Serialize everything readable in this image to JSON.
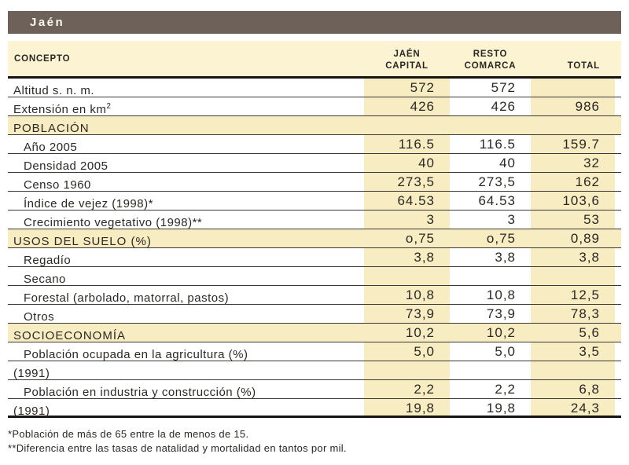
{
  "title": "Jaén",
  "table": {
    "columns": {
      "concept": "CONCEPTO",
      "capital_line1": "JAÉN",
      "capital_line2": "CAPITAL",
      "resto_line1": "RESTO",
      "resto_line2": "COMARCA",
      "total": "TOTAL"
    },
    "rows": [
      {
        "label": "Altitud s. n. m.",
        "capital": "572",
        "resto": "572",
        "total": ""
      },
      {
        "label": "Extensión en km",
        "sup": "2",
        "capital": "426",
        "resto": "426",
        "total": "986"
      },
      {
        "label": "POBLACIÓN",
        "section": true,
        "capital": "",
        "resto": "",
        "total": ""
      },
      {
        "label": "Año 2005",
        "indent": true,
        "capital": "116.5",
        "resto": "116.5",
        "total": "159.7"
      },
      {
        "label": "Densidad 2005",
        "indent": true,
        "capital": "40",
        "resto": "40",
        "total": "32"
      },
      {
        "label": "Censo 1960",
        "indent": true,
        "capital": "273,5",
        "resto": "273,5",
        "total": "162"
      },
      {
        "label": "Índice de vejez (1998)*",
        "indent": true,
        "capital": "64.53",
        "resto": "64.53",
        "total": "103,6"
      },
      {
        "label": "Crecimiento vegetativo (1998)**",
        "indent": true,
        "capital": "3",
        "resto": "3",
        "total": "53"
      },
      {
        "label": "USOS DEL SUELO (%)",
        "section": true,
        "capital": "o,75",
        "resto": "o,75",
        "total": "0,89"
      },
      {
        "label": "Regadío",
        "indent": true,
        "capital": "3,8",
        "resto": "3,8",
        "total": "3,8"
      },
      {
        "label": "Secano",
        "indent": true,
        "capital": "",
        "resto": "",
        "total": ""
      },
      {
        "label": "Forestal (arbolado, matorral, pastos)",
        "indent": true,
        "capital": "10,8",
        "resto": "10,8",
        "total": "12,5"
      },
      {
        "label": "Otros",
        "indent": true,
        "capital": "73,9",
        "resto": "73,9",
        "total": "78,3"
      },
      {
        "label": "SOCIOECONOMÍA",
        "section": true,
        "capital": "10,2",
        "resto": "10,2",
        "total": "5,6"
      },
      {
        "label": "Población ocupada en la agricultura (%)",
        "indent": true,
        "capital": "5,0",
        "resto": "5,0",
        "total": "3,5"
      },
      {
        "label": "(1991)",
        "capital": "",
        "resto": "",
        "total": ""
      },
      {
        "label": "Población en industria y construcción (%)",
        "indent": true,
        "capital": "2,2",
        "resto": "2,2",
        "total": "6,8"
      },
      {
        "label": "(1991)",
        "capital": "19,8",
        "resto": "19,8",
        "total": "24,3"
      }
    ]
  },
  "footnotes": [
    "*Población de más de 65 entre la de menos de 15.",
    "**Diferencia entre las tasas de natalidad y mortalidad en tantos por mil."
  ],
  "colors": {
    "title_bar": "#6e6159",
    "header_cream": "#fcf3d3",
    "band_cream": "#f8ecc3",
    "text": "#2b2824",
    "row_line": "#3b3733",
    "thick_line": "#161310"
  }
}
